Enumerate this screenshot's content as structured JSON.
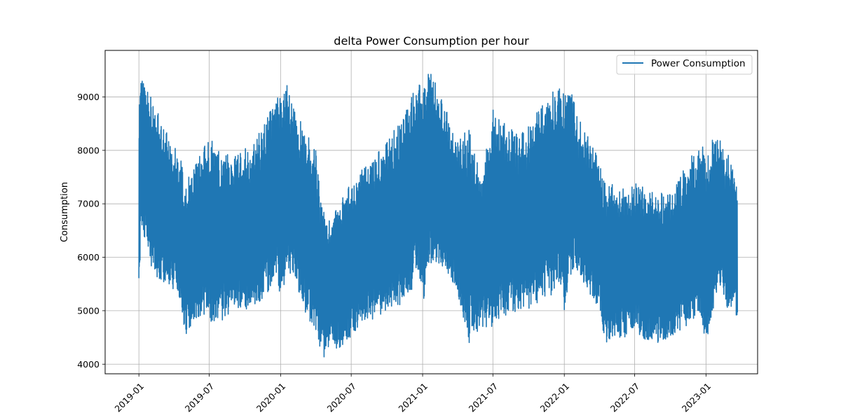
{
  "chart_data": {
    "type": "line",
    "title": "delta Power Consumption per hour",
    "xlabel": "",
    "ylabel": "Consumption",
    "ylim": [
      3820,
      9870
    ],
    "xlim": [
      "2018-10-06",
      "2023-05-14"
    ],
    "grid": true,
    "legend_position": "top-right",
    "x_ticks": [
      "2019-01",
      "2019-07",
      "2020-01",
      "2020-07",
      "2021-01",
      "2021-07",
      "2022-01",
      "2022-07",
      "2023-01"
    ],
    "y_ticks": [
      4000,
      5000,
      6000,
      7000,
      8000,
      9000
    ],
    "colors": {
      "series": "#1f77b4",
      "grid": "#b0b0b0",
      "axis": "#000000"
    },
    "series": [
      {
        "name": "Power Consumption",
        "resolution": "hourly, 2019-01-01 to 2023-03-23",
        "envelope": {
          "dates": [
            "2019-01-01",
            "2019-01-08",
            "2019-01-15",
            "2019-02-01",
            "2019-03-01",
            "2019-04-01",
            "2019-04-20",
            "2019-05-01",
            "2019-06-01",
            "2019-07-01",
            "2019-08-01",
            "2019-09-01",
            "2019-10-01",
            "2019-11-01",
            "2019-12-01",
            "2019-12-20",
            "2020-01-01",
            "2020-01-20",
            "2020-02-01",
            "2020-03-01",
            "2020-04-01",
            "2020-04-20",
            "2020-05-01",
            "2020-06-01",
            "2020-07-01",
            "2020-08-01",
            "2020-09-01",
            "2020-10-01",
            "2020-11-01",
            "2020-12-01",
            "2020-12-20",
            "2021-01-01",
            "2021-01-20",
            "2021-02-01",
            "2021-03-01",
            "2021-04-01",
            "2021-05-01",
            "2021-06-01",
            "2021-07-01",
            "2021-08-01",
            "2021-09-01",
            "2021-10-01",
            "2021-11-01",
            "2021-12-01",
            "2021-12-20",
            "2022-01-01",
            "2022-01-20",
            "2022-02-01",
            "2022-03-01",
            "2022-04-01",
            "2022-04-20",
            "2022-05-01",
            "2022-06-01",
            "2022-07-01",
            "2022-08-01",
            "2022-09-01",
            "2022-10-01",
            "2022-11-01",
            "2022-12-01",
            "2022-12-20",
            "2023-01-01",
            "2023-01-20",
            "2023-02-01",
            "2023-03-01",
            "2023-03-23"
          ],
          "max": [
            8700,
            9450,
            9300,
            9100,
            8500,
            8100,
            7800,
            7400,
            7800,
            8300,
            8000,
            7900,
            8050,
            8300,
            8700,
            9050,
            9000,
            9250,
            8900,
            8400,
            8000,
            7000,
            6700,
            7000,
            7400,
            7700,
            7900,
            8200,
            8500,
            9000,
            9400,
            9200,
            9600,
            9300,
            8800,
            8200,
            8500,
            7500,
            8800,
            8500,
            8300,
            8500,
            8800,
            9100,
            9200,
            9100,
            9200,
            8800,
            8300,
            7800,
            7300,
            7500,
            7300,
            7400,
            7300,
            7200,
            7200,
            7600,
            8000,
            8200,
            7800,
            8300,
            8300,
            7900,
            7300
          ],
          "min": [
            5300,
            6600,
            6300,
            5800,
            5500,
            5400,
            5100,
            4500,
            4900,
            4800,
            4800,
            4950,
            4900,
            5100,
            5300,
            5500,
            5200,
            5800,
            5600,
            5000,
            4600,
            4100,
            4300,
            4300,
            4500,
            4800,
            4850,
            5000,
            5100,
            5300,
            5700,
            5100,
            5900,
            5800,
            5800,
            5200,
            4400,
            4700,
            4700,
            4900,
            5000,
            5000,
            5200,
            5300,
            5500,
            4950,
            5700,
            5700,
            5400,
            5000,
            4200,
            4500,
            4500,
            4550,
            4450,
            4400,
            4500,
            4600,
            4800,
            4900,
            4200,
            5000,
            5400,
            5000,
            4900
          ]
        }
      }
    ]
  }
}
